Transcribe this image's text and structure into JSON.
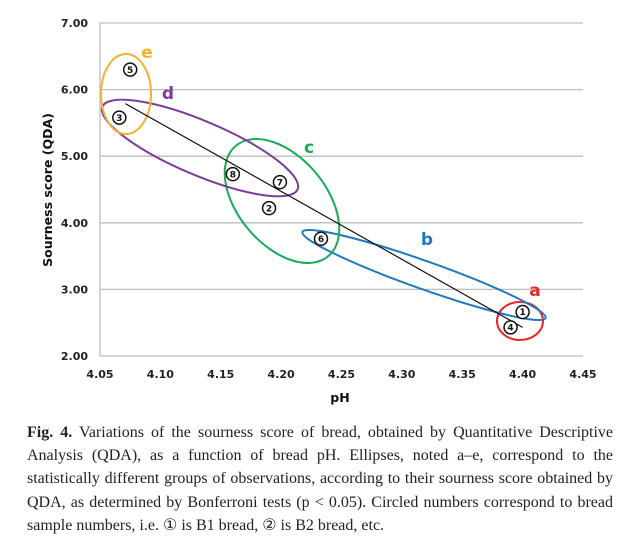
{
  "chart_data": {
    "type": "scatter",
    "xlabel": "pH",
    "ylabel": "Sourness score (QDA)",
    "xlim": [
      4.05,
      4.45
    ],
    "ylim": [
      2.0,
      7.0
    ],
    "x_ticks": [
      "4.05",
      "4.10",
      "4.15",
      "4.20",
      "4.25",
      "4.30",
      "4.35",
      "4.40",
      "4.45"
    ],
    "y_ticks": [
      "2.00",
      "3.00",
      "4.00",
      "5.00",
      "6.00",
      "7.00"
    ],
    "grid": "horizontal",
    "points": [
      {
        "label": "①",
        "x": 4.4,
        "y": 2.66
      },
      {
        "label": "②",
        "x": 4.19,
        "y": 4.22
      },
      {
        "label": "③",
        "x": 4.066,
        "y": 5.58
      },
      {
        "label": "④",
        "x": 4.39,
        "y": 2.43
      },
      {
        "label": "⑤",
        "x": 4.075,
        "y": 6.3
      },
      {
        "label": "⑥",
        "x": 4.233,
        "y": 3.76
      },
      {
        "label": "⑦",
        "x": 4.199,
        "y": 4.61
      },
      {
        "label": "⑧",
        "x": 4.16,
        "y": 4.73
      }
    ],
    "trendline": {
      "x": [
        4.071,
        4.4
      ],
      "y": [
        5.79,
        2.43
      ],
      "color": "#111111"
    },
    "groups": [
      {
        "label": "a",
        "color": "#e8262a"
      },
      {
        "label": "b",
        "color": "#1f78c0"
      },
      {
        "label": "c",
        "color": "#1aab5a"
      },
      {
        "label": "d",
        "color": "#7d3c98"
      },
      {
        "label": "e",
        "color": "#f5b133"
      }
    ]
  },
  "caption": {
    "fig_label": "Fig. 4.",
    "text": "Variations of the sourness score of bread, obtained by Quantitative Descriptive Analysis (QDA), as a function of bread pH. Ellipses, noted a–e, correspond to the statistically different groups of observations, according to their sourness score obtained by QDA, as determined by Bonferroni tests (p  <  0.05). Circled numbers correspond to bread sample numbers, i.e. ① is B1 bread, ② is B2 bread, etc."
  }
}
